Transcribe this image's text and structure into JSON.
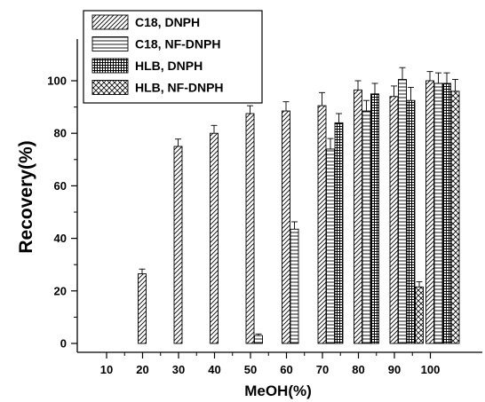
{
  "chart_data": {
    "type": "bar",
    "title": "",
    "xlabel": "MeOH(%)",
    "ylabel": "Recovery(%)",
    "ylim": [
      -5,
      115
    ],
    "yticks": [
      0,
      20,
      40,
      60,
      80,
      100
    ],
    "categories": [
      "10",
      "20",
      "30",
      "40",
      "50",
      "60",
      "70",
      "80",
      "90",
      "100"
    ],
    "legend_position": "top-left",
    "error_bars": true,
    "series": [
      {
        "name": "C18, DNPH",
        "pattern": "diagonal",
        "values": [
          null,
          26.5,
          75,
          80,
          87.5,
          88.5,
          90.5,
          96.5,
          94,
          100
        ],
        "errors": [
          null,
          1.8,
          2.8,
          3,
          3,
          3.5,
          5,
          3.5,
          4,
          3.5
        ]
      },
      {
        "name": "C18, NF-DNPH",
        "pattern": "horizontal",
        "values": [
          null,
          null,
          null,
          null,
          3,
          43.5,
          74,
          88.5,
          100.5,
          99
        ],
        "errors": [
          null,
          null,
          null,
          null,
          0.6,
          2.8,
          4,
          4,
          4.5,
          4
        ]
      },
      {
        "name": "HLB, DNPH",
        "pattern": "grid",
        "values": [
          null,
          null,
          null,
          null,
          null,
          null,
          84,
          95,
          92.5,
          99
        ],
        "errors": [
          null,
          null,
          null,
          null,
          null,
          null,
          3.5,
          4,
          5,
          4
        ]
      },
      {
        "name": "HLB, NF-DNPH",
        "pattern": "crosshatch",
        "values": [
          null,
          null,
          null,
          null,
          null,
          null,
          null,
          null,
          21.5,
          96
        ],
        "errors": [
          null,
          null,
          null,
          null,
          null,
          null,
          null,
          null,
          2,
          4.5
        ]
      }
    ]
  }
}
